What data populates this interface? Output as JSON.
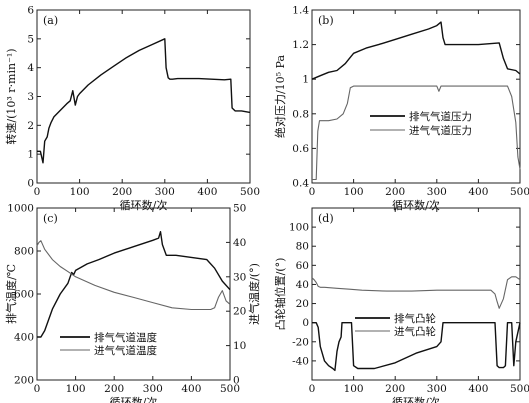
{
  "chart_data": [
    {
      "type": "line",
      "panel_label": "(a)",
      "xlabel": "循环数/次",
      "ylabel": "转速/(10³ r·min⁻¹)",
      "xlim": [
        0,
        500
      ],
      "ylim": [
        0,
        6
      ],
      "xticks": [
        0,
        100,
        200,
        300,
        400,
        500
      ],
      "yticks": [
        0,
        1,
        2,
        3,
        4,
        5,
        6
      ],
      "grid": false,
      "legend": "none",
      "series": [
        {
          "color": "#111111",
          "x": [
            0,
            8,
            14,
            18,
            24,
            28,
            33,
            40,
            50,
            60,
            70,
            78,
            84,
            90,
            95,
            100,
            120,
            150,
            180,
            210,
            240,
            270,
            300,
            303,
            308,
            312,
            318,
            330,
            350,
            380,
            410,
            440,
            455,
            458,
            465,
            480,
            500
          ],
          "y": [
            1.1,
            1.1,
            0.7,
            1.45,
            1.6,
            1.9,
            2.1,
            2.3,
            2.45,
            2.6,
            2.75,
            2.85,
            3.2,
            2.7,
            3.0,
            3.1,
            3.4,
            3.75,
            4.05,
            4.35,
            4.6,
            4.8,
            5.0,
            4.0,
            3.65,
            3.6,
            3.6,
            3.62,
            3.62,
            3.62,
            3.6,
            3.58,
            3.6,
            2.6,
            2.5,
            2.5,
            2.45
          ]
        }
      ]
    },
    {
      "type": "line",
      "panel_label": "(b)",
      "xlabel": "循环数/次",
      "ylabel": "绝对压力/10⁵ Pa",
      "xlim": [
        0,
        500
      ],
      "ylim": [
        0.4,
        1.4
      ],
      "xticks": [
        0,
        100,
        200,
        300,
        400,
        500
      ],
      "yticks": [
        0.4,
        0.6,
        0.8,
        1.0,
        1.2,
        1.4
      ],
      "grid": false,
      "legend": "center-right",
      "series": [
        {
          "name": "排气气道压力",
          "color": "#111111",
          "x": [
            0,
            20,
            40,
            60,
            80,
            90,
            100,
            130,
            160,
            200,
            240,
            280,
            300,
            310,
            315,
            320,
            350,
            400,
            450,
            460,
            470,
            490,
            500
          ],
          "y": [
            1.0,
            1.02,
            1.04,
            1.05,
            1.09,
            1.12,
            1.15,
            1.18,
            1.2,
            1.23,
            1.26,
            1.29,
            1.31,
            1.33,
            1.24,
            1.2,
            1.2,
            1.2,
            1.21,
            1.12,
            1.06,
            1.05,
            1.03
          ]
        },
        {
          "name": "进气气道压力",
          "color": "#666666",
          "x": [
            0,
            10,
            14,
            18,
            25,
            40,
            60,
            75,
            85,
            92,
            100,
            150,
            200,
            250,
            300,
            305,
            310,
            330,
            400,
            450,
            470,
            480,
            490,
            495,
            500
          ],
          "y": [
            0.42,
            0.42,
            0.7,
            0.76,
            0.76,
            0.76,
            0.77,
            0.8,
            0.86,
            0.95,
            0.96,
            0.96,
            0.96,
            0.96,
            0.96,
            0.93,
            0.96,
            0.96,
            0.96,
            0.96,
            0.96,
            0.9,
            0.75,
            0.55,
            0.48
          ]
        }
      ]
    },
    {
      "type": "line",
      "panel_label": "(c)",
      "xlabel": "循环数/次",
      "ylabel": "排气温度/℃",
      "y2label": "进气温度/(°)",
      "xlim": [
        0,
        500
      ],
      "ylim": [
        200,
        1000
      ],
      "y2lim": [
        0,
        50
      ],
      "xticks": [
        0,
        100,
        200,
        300,
        400,
        500
      ],
      "yticks": [
        200,
        400,
        600,
        800,
        1000
      ],
      "y2ticks": [
        0,
        10,
        20,
        30,
        40,
        50
      ],
      "grid": false,
      "legend": "bottom-left",
      "series": [
        {
          "name": "排气气道温度",
          "axis": "left",
          "color": "#111111",
          "x": [
            0,
            10,
            20,
            30,
            40,
            60,
            80,
            90,
            95,
            100,
            130,
            160,
            200,
            250,
            300,
            315,
            320,
            325,
            335,
            360,
            400,
            440,
            460,
            480,
            500
          ],
          "y": [
            400,
            400,
            430,
            480,
            530,
            600,
            650,
            700,
            690,
            710,
            740,
            760,
            790,
            820,
            850,
            860,
            890,
            830,
            780,
            780,
            770,
            760,
            720,
            660,
            620
          ]
        },
        {
          "name": "进气气道温度",
          "axis": "right",
          "color": "#666666",
          "x": [
            0,
            5,
            10,
            20,
            40,
            60,
            80,
            100,
            150,
            200,
            250,
            300,
            350,
            400,
            450,
            460,
            470,
            480,
            490,
            500
          ],
          "y": [
            39,
            40,
            40.5,
            38,
            35,
            33,
            31.5,
            30,
            27.5,
            25.5,
            24,
            22.5,
            21,
            20.5,
            20.5,
            21,
            24,
            26,
            23,
            22
          ]
        }
      ]
    },
    {
      "type": "line",
      "panel_label": "(d)",
      "xlabel": "循环数/次",
      "ylabel": "凸轮轴位置/(°)",
      "xlim": [
        0,
        500
      ],
      "ylim": [
        -60,
        120
      ],
      "xticks": [
        0,
        100,
        200,
        300,
        400,
        500
      ],
      "yticks": [
        -40,
        -20,
        0,
        20,
        40,
        60,
        80,
        100
      ],
      "grid": false,
      "legend": "center",
      "series": [
        {
          "name": "排气凸轮",
          "color": "#111111",
          "x": [
            0,
            10,
            15,
            20,
            30,
            40,
            50,
            55,
            60,
            65,
            70,
            72,
            80,
            90,
            95,
            100,
            110,
            150,
            200,
            250,
            300,
            310,
            315,
            320,
            400,
            440,
            445,
            450,
            460,
            465,
            470,
            480,
            485,
            490,
            500
          ],
          "y": [
            0,
            0,
            -5,
            -25,
            -40,
            -45,
            -48,
            -50,
            -30,
            -20,
            -15,
            0,
            0,
            0,
            0,
            -45,
            -48,
            -48,
            -42,
            -32,
            -25,
            -20,
            0,
            0,
            0,
            0,
            -45,
            -47,
            -47,
            -45,
            0,
            0,
            -45,
            -20,
            0
          ]
        },
        {
          "name": "进气凸轮",
          "color": "#666666",
          "x": [
            0,
            5,
            10,
            15,
            20,
            30,
            60,
            90,
            120,
            180,
            240,
            300,
            350,
            400,
            430,
            440,
            445,
            450,
            460,
            470,
            480,
            490,
            500
          ],
          "y": [
            47,
            45,
            42,
            38,
            37,
            37,
            36,
            35,
            34,
            33,
            33,
            34,
            34,
            34,
            34,
            30,
            22,
            15,
            25,
            45,
            48,
            48,
            45
          ]
        }
      ]
    }
  ]
}
